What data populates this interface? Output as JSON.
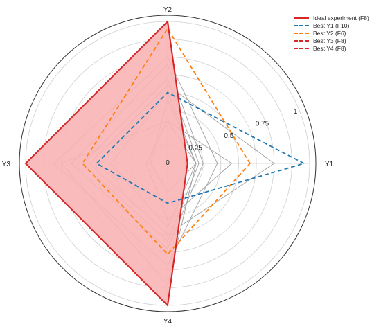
{
  "chart_data": {
    "type": "radar",
    "axes": [
      "Y1",
      "Y2",
      "Y3",
      "Y4"
    ],
    "rlim": [
      0,
      1
    ],
    "radial_ticks": [
      0,
      0.25,
      0.5,
      0.75,
      1
    ],
    "radial_tick_labels": [
      "0",
      "0.25",
      "0.5",
      "0.75",
      "1"
    ],
    "grid": true,
    "legend_position": "top-right",
    "series": [
      {
        "name": "Ideal experiment (F8)",
        "values": [
          0.14,
          1.0,
          1.0,
          1.0
        ],
        "color": "#d62728",
        "style": "solid",
        "fill": "#f8b4b4"
      },
      {
        "name": "Best Y1 (F10)",
        "values": [
          0.96,
          0.5,
          0.5,
          0.28
        ],
        "color": "#1f77b4",
        "style": "dashed"
      },
      {
        "name": "Best Y2 (F6)",
        "values": [
          0.58,
          0.95,
          0.6,
          0.64
        ],
        "color": "#ff7f0e",
        "style": "dashed"
      },
      {
        "name": "Best Y3 (F8)",
        "values": [
          0.14,
          1.0,
          1.0,
          1.0
        ],
        "color": "#d62728",
        "style": "dashed"
      },
      {
        "name": "Best Y4 (F8)",
        "values": [
          0.14,
          1.0,
          1.0,
          1.0
        ],
        "color": "#d62728",
        "style": "dashed"
      }
    ],
    "other_experiments": [
      [
        0.2,
        0.5,
        0.4,
        0.45
      ],
      [
        0.22,
        0.6,
        0.6,
        0.55
      ],
      [
        0.25,
        0.7,
        0.68,
        0.6
      ],
      [
        0.35,
        0.75,
        0.8,
        0.72
      ],
      [
        0.75,
        0.55,
        0.55,
        0.5
      ],
      [
        0.45,
        0.3,
        0.15,
        0.4
      ],
      [
        0.2,
        0.45,
        0.12,
        0.2
      ],
      [
        0.2,
        0.3,
        0.75,
        0.85
      ]
    ]
  }
}
